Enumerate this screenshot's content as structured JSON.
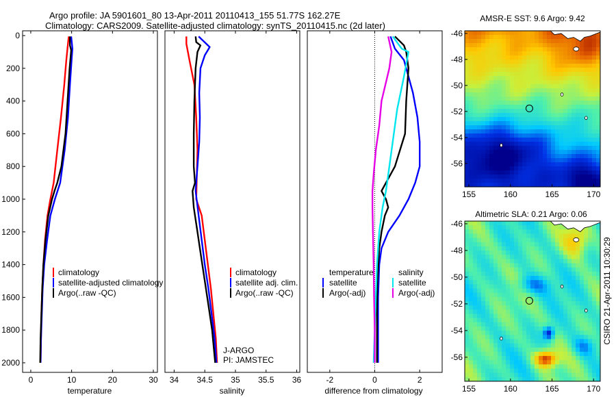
{
  "header": {
    "title_line1": "Argo profile: JA 5901601_80 13-Apr-2011 20110413_155 51.77S 162.27E",
    "title_line2": "Climatology: CARS2009. Satellite-adjusted climatology: synTS_20110415.nc (2d later)"
  },
  "side_label": "CSIRO 21-Apr-2011 10:30:29",
  "colors": {
    "climatology": "#ff0000",
    "satellite": "#0000ff",
    "argo": "#000000",
    "salinity_satellite": "#00e5ee",
    "salinity_argo": "#e500e5"
  },
  "chart_data": [
    {
      "type": "line",
      "name": "temperature-profile",
      "title": "",
      "xlabel": "temperature",
      "ylabel": "",
      "xlim": [
        -2,
        31
      ],
      "ylim": [
        2050,
        0
      ],
      "y_reversed": true,
      "xticks": [
        0,
        10,
        20,
        30
      ],
      "yticks": [
        0,
        200,
        400,
        600,
        800,
        1000,
        1200,
        1400,
        1600,
        1800,
        2000
      ],
      "legend": {
        "position": "lower-middle",
        "entries": [
          "climatology",
          "satellite-adjusted climatology",
          "Argo(..raw -QC)"
        ]
      },
      "series": [
        {
          "name": "climatology",
          "color_key": "climatology",
          "x": [
            9.3,
            9.1,
            8.7,
            8.2,
            7.4,
            6.5,
            5.6,
            4.8,
            4.1,
            3.5,
            3.1,
            2.8,
            2.6,
            2.5,
            2.4
          ],
          "y": [
            5,
            50,
            150,
            300,
            500,
            700,
            900,
            1000,
            1100,
            1250,
            1400,
            1550,
            1700,
            1850,
            2000
          ]
        },
        {
          "name": "satellite-adjusted climatology",
          "color_key": "satellite",
          "x": [
            9.9,
            10.2,
            10.0,
            9.6,
            9.1,
            8.3,
            7.2,
            5.9,
            4.8,
            4.0,
            3.3,
            2.9,
            2.7,
            2.5,
            2.4
          ],
          "y": [
            5,
            80,
            150,
            300,
            500,
            700,
            900,
            1000,
            1100,
            1250,
            1400,
            1550,
            1700,
            1850,
            2000
          ]
        },
        {
          "name": "Argo(..raw -QC)",
          "color_key": "argo",
          "x": [
            9.6,
            9.6,
            9.9,
            9.5,
            9.0,
            8.5,
            7.5,
            6.5,
            5.8,
            5.2,
            4.3,
            3.6,
            3.1,
            2.8,
            2.6,
            2.4,
            2.3
          ],
          "y": [
            5,
            60,
            90,
            200,
            400,
            600,
            800,
            900,
            950,
            1000,
            1100,
            1250,
            1400,
            1550,
            1700,
            1850,
            2000
          ]
        }
      ]
    },
    {
      "type": "line",
      "name": "salinity-profile",
      "title": "",
      "xlabel": "salinity",
      "ylabel": "",
      "xlim": [
        33.85,
        36.05
      ],
      "ylim": [
        2050,
        0
      ],
      "y_reversed": true,
      "xticks": [
        34,
        34.5,
        35,
        35.5,
        36
      ],
      "legend": {
        "position": "lower-middle",
        "entries": [
          "climatology",
          "satellite adj. clim.",
          "Argo(..raw -QC)"
        ]
      },
      "annotations": [
        "J-ARGO",
        "PI: JAMSTEC"
      ],
      "series": [
        {
          "name": "climatology",
          "color_key": "climatology",
          "x": [
            34.2,
            34.2,
            34.25,
            34.33,
            34.36,
            34.38,
            34.37,
            34.36,
            34.45,
            34.5,
            34.55,
            34.6,
            34.64,
            34.68,
            34.7
          ],
          "y": [
            5,
            50,
            150,
            300,
            500,
            700,
            850,
            1000,
            1100,
            1250,
            1400,
            1550,
            1700,
            1850,
            2000
          ]
        },
        {
          "name": "satellite adj. clim.",
          "color_key": "satellite",
          "x": [
            34.4,
            34.58,
            34.5,
            34.43,
            34.41,
            34.42,
            34.41,
            34.38,
            34.35,
            34.4,
            34.45,
            34.5,
            34.56,
            34.61,
            34.66,
            34.69
          ],
          "y": [
            5,
            70,
            120,
            200,
            350,
            500,
            650,
            800,
            950,
            1100,
            1250,
            1400,
            1550,
            1700,
            1850,
            2000
          ]
        },
        {
          "name": "Argo(..raw -QC)",
          "color_key": "argo",
          "x": [
            34.35,
            34.36,
            34.43,
            34.38,
            34.35,
            34.33,
            34.32,
            34.32,
            34.34,
            34.3,
            34.32,
            34.38,
            34.44,
            34.5,
            34.56,
            34.62,
            34.67
          ],
          "y": [
            5,
            40,
            60,
            100,
            200,
            400,
            600,
            800,
            900,
            950,
            1050,
            1200,
            1350,
            1500,
            1650,
            1800,
            2000
          ]
        }
      ]
    },
    {
      "type": "line",
      "name": "difference-profile",
      "title": "",
      "xlabel": "difference from climatology",
      "ylabel": "",
      "xlim": [
        -3,
        3
      ],
      "ylim": [
        2050,
        0
      ],
      "y_reversed": true,
      "xticks": [
        -2,
        0,
        2
      ],
      "zero_line": true,
      "legend": {
        "position": "lower-middle",
        "entries": [
          "temperature",
          "satellite",
          "Argo(-adj)",
          "salinity",
          "satellite",
          "Argo(-adj)"
        ]
      },
      "series": [
        {
          "name": "temperature satellite",
          "color_key": "satellite",
          "x": [
            0.7,
            0.9,
            1.3,
            1.5,
            1.7,
            1.9,
            2.0,
            2.0,
            1.8,
            1.5,
            1.1,
            0.6,
            0.3,
            0.2,
            0.15,
            0.15,
            0.15
          ],
          "y": [
            5,
            80,
            150,
            250,
            350,
            500,
            650,
            800,
            900,
            1000,
            1100,
            1200,
            1300,
            1400,
            1600,
            1800,
            2000
          ]
        },
        {
          "name": "temperature Argo(-adj)",
          "color_key": "argo",
          "x": [
            0.9,
            1.3,
            1.4,
            1.5,
            1.4,
            1.35,
            0.9,
            0.5,
            0.3,
            0.5,
            0.6,
            0.45,
            0.3,
            0.2,
            0.12,
            0.1,
            0.1
          ],
          "y": [
            5,
            60,
            100,
            200,
            400,
            600,
            800,
            900,
            950,
            1000,
            1050,
            1100,
            1200,
            1300,
            1500,
            1700,
            2000
          ]
        },
        {
          "name": "salinity satellite",
          "color_key": "salinity_satellite",
          "x": [
            0.8,
            1.2,
            1.5,
            1.3,
            1.0,
            0.85,
            0.7,
            0.6,
            0.5,
            0.35,
            0.2,
            0.1,
            0.05,
            0.0,
            -0.05
          ],
          "y": [
            5,
            80,
            100,
            250,
            450,
            600,
            750,
            850,
            950,
            1050,
            1200,
            1400,
            1600,
            1800,
            2000
          ]
        },
        {
          "name": "salinity Argo(-adj)",
          "color_key": "salinity_argo",
          "x": [
            0.6,
            0.75,
            0.65,
            0.3,
            0.2,
            0.05,
            -0.05,
            -0.1,
            -0.1,
            -0.08,
            -0.05,
            -0.03,
            0.0,
            0.0
          ],
          "y": [
            5,
            100,
            200,
            400,
            550,
            700,
            850,
            950,
            1050,
            1200,
            1400,
            1600,
            1800,
            2000
          ]
        }
      ]
    },
    {
      "type": "heatmap",
      "name": "sst-map",
      "title": "AMSR-E SST: 9.6 Argo: 9.42",
      "xlim": [
        154.5,
        170.8
      ],
      "ylim": [
        -57.8,
        -45.8
      ],
      "xticks": [
        155,
        160,
        165,
        170
      ],
      "yticks": [
        -46,
        -48,
        -50,
        -52,
        -54,
        -56
      ],
      "marker": {
        "lon": 162.27,
        "lat": -51.77
      }
    },
    {
      "type": "heatmap",
      "name": "sla-map",
      "title": "Altimetric SLA: 0.21 Argo: 0.06",
      "xlim": [
        154.5,
        170.8
      ],
      "ylim": [
        -57.8,
        -45.8
      ],
      "xticks": [
        155,
        160,
        165,
        170
      ],
      "yticks": [
        -46,
        -48,
        -50,
        -52,
        -54,
        -56
      ],
      "marker": {
        "lon": 162.27,
        "lat": -51.77
      }
    }
  ]
}
